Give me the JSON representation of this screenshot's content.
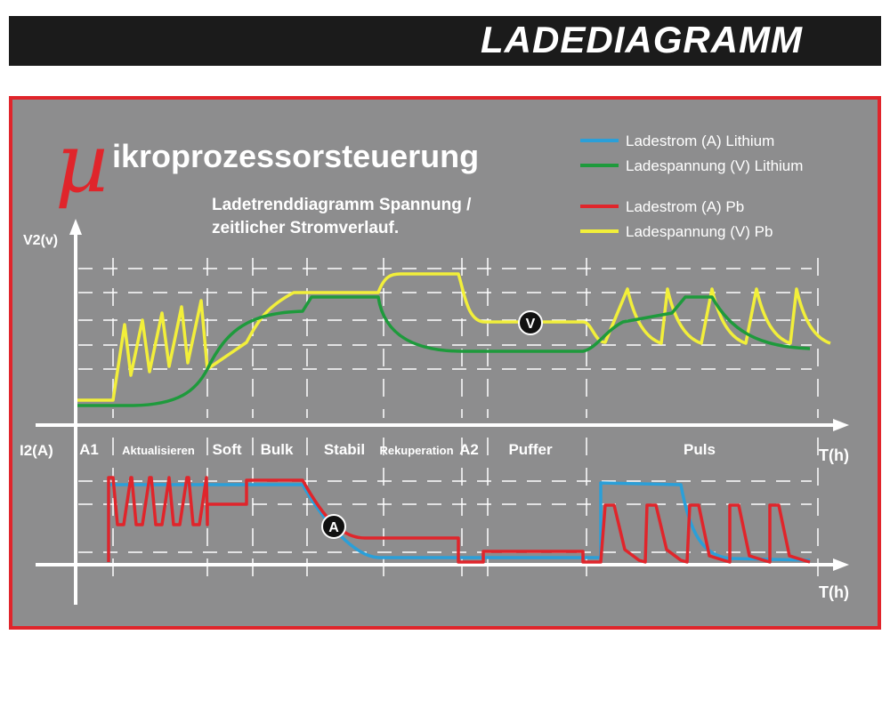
{
  "header": {
    "title": "LADEDIAGRAMM"
  },
  "diagram": {
    "logo_mu": "µ",
    "heading": "ikroprozessorsteuerung",
    "subtitle_line1": "Ladetrenddiagramm Spannung /",
    "subtitle_line2": "zeitlicher Stromverlauf.",
    "upper_axis_label": "V2(v)",
    "lower_axis_label": "I2(A)",
    "time_label_upper": "T(h)",
    "time_label_lower": "T(h)",
    "phases": [
      "A1",
      "Aktualisieren",
      "Soft",
      "Bulk",
      "Stabil",
      "Rekuperation",
      "A2",
      "Puffer",
      "Puls"
    ],
    "marker_voltage": "V",
    "marker_current": "A",
    "legend": [
      {
        "label": "Ladestrom (A) Lithium",
        "color": "#2b9fd8"
      },
      {
        "label": "Ladespannung (V) Lithium",
        "color": "#1e9a3c"
      },
      {
        "label": "Ladestrom (A) Pb",
        "color": "#e0252b"
      },
      {
        "label": "Ladespannung (V) Pb",
        "color": "#f2ef3a"
      }
    ]
  }
}
